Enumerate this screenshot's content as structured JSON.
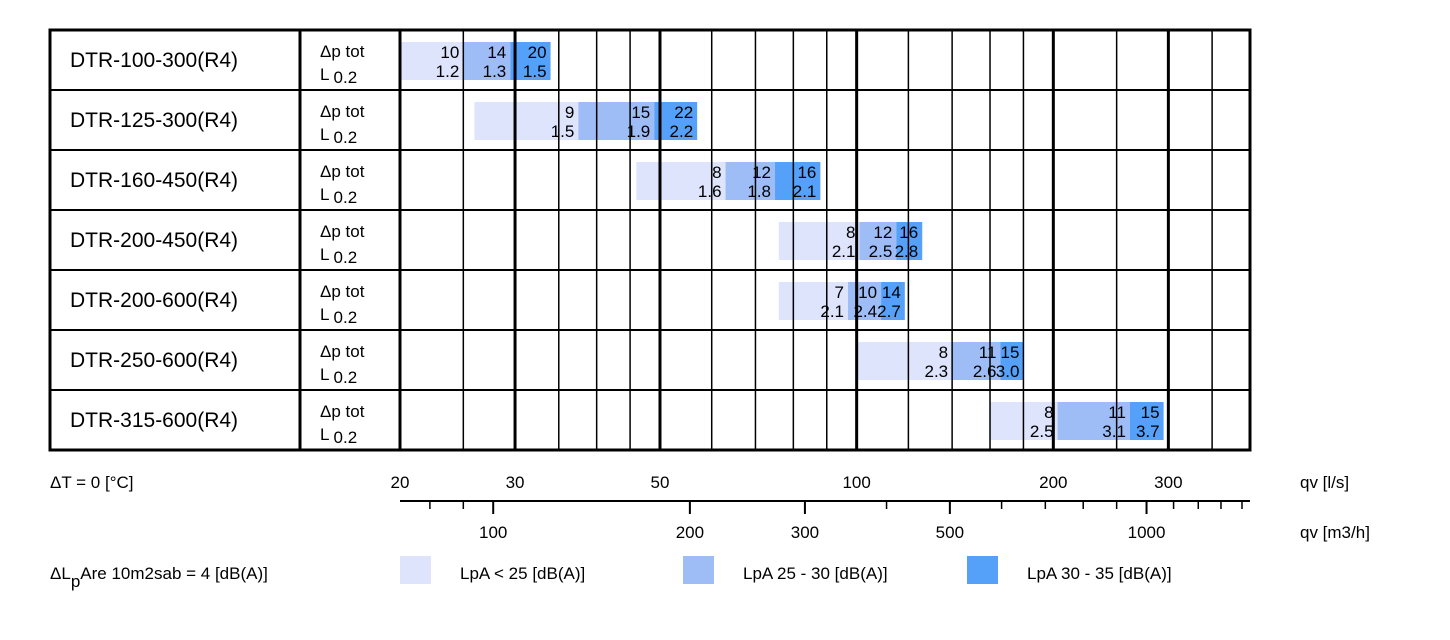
{
  "chart_data": {
    "type": "table",
    "x_unit_top": "qv [l/s]",
    "x_unit_bottom": "qv [m3/h]",
    "x_scale": "log",
    "xlim_ls": [
      20,
      400
    ],
    "row_label_dp": "Δp tot",
    "row_label_l": "L",
    "row_label_l_value": "0.2",
    "top_ticks": [
      {
        "value": 20,
        "label": "20"
      },
      {
        "value": 30,
        "label": "30"
      },
      {
        "value": 50,
        "label": "50"
      },
      {
        "value": 100,
        "label": "100"
      },
      {
        "value": 200,
        "label": "200"
      },
      {
        "value": 300,
        "label": "300"
      }
    ],
    "bottom_ticks": [
      {
        "value": 100,
        "label": "100"
      },
      {
        "value": 200,
        "label": "200"
      },
      {
        "value": 300,
        "label": "300"
      },
      {
        "value": 500,
        "label": "500"
      },
      {
        "value": 1000,
        "label": "1000"
      }
    ],
    "bottom_minor_ticks": [
      80,
      90,
      400,
      600,
      700,
      800,
      900,
      1100,
      1200,
      1300,
      1400
    ],
    "series": [
      {
        "name": "LpA < 25 [dB(A)]",
        "color": "#dde4fb"
      },
      {
        "name": "LpA 25 - 30 [dB(A)]",
        "color": "#9ebdf7"
      },
      {
        "name": "LpA 30 - 35 [dB(A)]",
        "color": "#55a0f8"
      }
    ],
    "rows": [
      {
        "model": "DTR-100-300(R4)",
        "segments": [
          {
            "from": 20,
            "to": 25,
            "dp": "10",
            "l": "1.2"
          },
          {
            "from": 25,
            "to": 29.5,
            "dp": "14",
            "l": "1.3"
          },
          {
            "from": 29.5,
            "to": 34,
            "dp": "20",
            "l": "1.5"
          }
        ]
      },
      {
        "model": "DTR-125-300(R4)",
        "segments": [
          {
            "from": 26,
            "to": 37.5,
            "dp": "9",
            "l": "1.5"
          },
          {
            "from": 37.5,
            "to": 49,
            "dp": "15",
            "l": "1.9"
          },
          {
            "from": 49,
            "to": 57,
            "dp": "22",
            "l": "2.2"
          }
        ]
      },
      {
        "model": "DTR-160-450(R4)",
        "segments": [
          {
            "from": 46,
            "to": 63,
            "dp": "8",
            "l": "1.6"
          },
          {
            "from": 63,
            "to": 75,
            "dp": "12",
            "l": "1.8"
          },
          {
            "from": 75,
            "to": 88,
            "dp": "16",
            "l": "2.1"
          }
        ]
      },
      {
        "model": "DTR-200-450(R4)",
        "segments": [
          {
            "from": 76,
            "to": 101,
            "dp": "8",
            "l": "2.1"
          },
          {
            "from": 101,
            "to": 115,
            "dp": "12",
            "l": "2.5"
          },
          {
            "from": 115,
            "to": 126,
            "dp": "16",
            "l": "2.8"
          }
        ]
      },
      {
        "model": "DTR-200-600(R4)",
        "segments": [
          {
            "from": 76,
            "to": 97,
            "dp": "7",
            "l": "2.1"
          },
          {
            "from": 97,
            "to": 109,
            "dp": "10",
            "l": "2.4"
          },
          {
            "from": 109,
            "to": 118.5,
            "dp": "14",
            "l": "2.7"
          }
        ]
      },
      {
        "model": "DTR-250-600(R4)",
        "segments": [
          {
            "from": 100,
            "to": 140,
            "dp": "8",
            "l": "2.3"
          },
          {
            "from": 140,
            "to": 166,
            "dp": "11",
            "l": "2.6"
          },
          {
            "from": 166,
            "to": 180,
            "dp": "15",
            "l": "3.0"
          }
        ]
      },
      {
        "model": "DTR-315-600(R4)",
        "segments": [
          {
            "from": 160,
            "to": 203,
            "dp": "8",
            "l": "2.5"
          },
          {
            "from": 203,
            "to": 262,
            "dp": "11",
            "l": "3.1"
          },
          {
            "from": 262,
            "to": 295,
            "dp": "15",
            "l": "3.7"
          }
        ]
      }
    ],
    "footnote_dt": "ΔT = 0 [°C]",
    "footnote_dl_prefix": "ΔL",
    "footnote_dl_sub": "p",
    "footnote_dl_rest": "Are 10m2sab = 4 [dB(A)]"
  }
}
